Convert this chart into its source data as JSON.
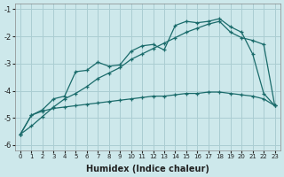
{
  "xlabel": "Humidex (Indice chaleur)",
  "bg_color": "#cde8eb",
  "grid_color": "#aacdd2",
  "line_color": "#1a6b6b",
  "line1_y": [
    -5.6,
    -4.9,
    -4.7,
    -4.3,
    -4.2,
    -3.3,
    -3.25,
    -2.95,
    -3.1,
    -3.05,
    -2.55,
    -2.35,
    -2.3,
    -2.5,
    -1.6,
    -1.45,
    -1.5,
    -1.45,
    -1.35,
    -1.65,
    -1.85,
    -2.65,
    -4.1,
    -4.55
  ],
  "line2_y": [
    -5.6,
    -5.3,
    -4.95,
    -4.6,
    -4.3,
    -4.1,
    -3.85,
    -3.55,
    -3.35,
    -3.15,
    -2.85,
    -2.65,
    -2.45,
    -2.25,
    -2.05,
    -1.85,
    -1.7,
    -1.55,
    -1.45,
    -1.85,
    -2.05,
    -2.15,
    -2.3,
    -4.55
  ],
  "line3_y": [
    -5.6,
    -4.9,
    -4.75,
    -4.65,
    -4.6,
    -4.55,
    -4.5,
    -4.45,
    -4.4,
    -4.35,
    -4.3,
    -4.25,
    -4.2,
    -4.2,
    -4.15,
    -4.1,
    -4.1,
    -4.05,
    -4.05,
    -4.1,
    -4.15,
    -4.2,
    -4.3,
    -4.55
  ],
  "ylim": [
    -6.2,
    -0.8
  ],
  "xlim": [
    -0.5,
    23.5
  ],
  "yticks": [
    -6,
    -5,
    -4,
    -3,
    -2,
    -1
  ],
  "xticks": [
    0,
    1,
    2,
    3,
    4,
    5,
    6,
    7,
    8,
    9,
    10,
    11,
    12,
    13,
    14,
    15,
    16,
    17,
    18,
    19,
    20,
    21,
    22,
    23
  ]
}
